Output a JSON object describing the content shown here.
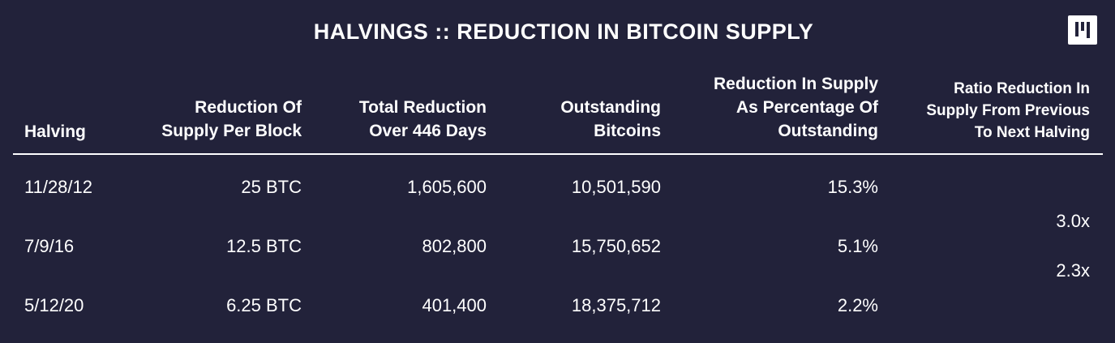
{
  "title": "HALVINGS :: REDUCTION IN BITCOIN SUPPLY",
  "logo_icon": "pantera-logo-icon",
  "columns": [
    {
      "lines": [
        "Halving"
      ]
    },
    {
      "lines": [
        "Reduction Of",
        "Supply Per Block"
      ]
    },
    {
      "lines": [
        "Total Reduction",
        "Over 446 Days"
      ]
    },
    {
      "lines": [
        "Outstanding",
        "Bitcoins"
      ]
    },
    {
      "lines": [
        "Reduction In Supply",
        "As Percentage Of",
        "Outstanding"
      ]
    },
    {
      "lines": [
        "Ratio Reduction In",
        "Supply From Previous",
        "To Next Halving"
      ]
    }
  ],
  "rows": [
    {
      "halving": "11/28/12",
      "per_block": "25 BTC",
      "total_reduction": "1,605,600",
      "outstanding": "10,501,590",
      "pct": "15.3%"
    },
    {
      "halving": "7/9/16",
      "per_block": "12.5 BTC",
      "total_reduction": "802,800",
      "outstanding": "15,750,652",
      "pct": "5.1%"
    },
    {
      "halving": "5/12/20",
      "per_block": "6.25 BTC",
      "total_reduction": "401,400",
      "outstanding": "18,375,712",
      "pct": "2.2%"
    }
  ],
  "ratios": [
    "3.0x",
    "2.3x"
  ],
  "colors": {
    "background": "#22223a",
    "text": "#ffffff"
  }
}
